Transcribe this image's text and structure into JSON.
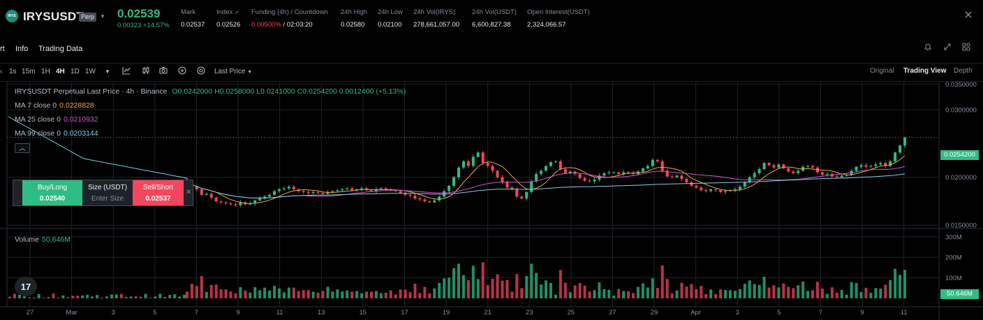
{
  "header": {
    "logo_text": "IRYS",
    "symbol": "IRYSUSDT",
    "badge": "Perp",
    "last_price": "0.02539",
    "change": "0.00323 +14.57%",
    "stats": [
      {
        "label": "Mark",
        "value": "0.02537"
      },
      {
        "label": "Index",
        "value": "0.02526"
      },
      {
        "label": "Funding (4h) / Countdown",
        "value_red": "0.00500%",
        "value": " / 02:03:20"
      },
      {
        "label": "24h High",
        "value": "0.02580"
      },
      {
        "label": "24h Low",
        "value": "0.02100"
      },
      {
        "label": "24h Vol(IRYS)",
        "value": "278,661,057.00"
      },
      {
        "label": "24h Vol(USDT)",
        "value": "6,600,827.38"
      },
      {
        "label": "Open Interest(USDT)",
        "value": "2,324,066.57"
      }
    ],
    "colors": {
      "up": "#2ebd85",
      "down": "#f6465d"
    }
  },
  "tabs": [
    "rt",
    "Info",
    "Trading Data"
  ],
  "toolbar": {
    "timeframes": [
      "1s",
      "15m",
      "1H",
      "4H",
      "1D",
      "1W"
    ],
    "active_timeframe": "4H",
    "price_type": "Last Price",
    "views": [
      "Original",
      "Trading View",
      "Depth"
    ],
    "active_view": "Trading View"
  },
  "legend": {
    "title": "IRYSUSDT Perpetual Last Price · 4h · Binance",
    "ohlc": "O0.0242000  H0.0258000  L0.0241000  C0.0254200  0.0012400 (+5.13%)",
    "ma7_label": "MA 7 close 0",
    "ma7_value": "0.0228828",
    "ma25_label": "MA 25 close 0",
    "ma25_value": "0.0210932",
    "ma99_label": "MA 99 close 0",
    "ma99_value": "0.0203144",
    "volume_label": "Volume",
    "volume_value": "50.646M"
  },
  "trade_panel": {
    "buy_label": "Buy/Long",
    "buy_price": "0.02540",
    "size_label": "Size (USDT)",
    "size_placeholder": "Enter Size",
    "sell_label": "Sell/Short",
    "sell_price": "0.02537"
  },
  "current_price_tag": "0.0254200",
  "volume_tag": "50.646M",
  "tv_logo": "17",
  "chart_data": {
    "type": "candlestick",
    "price_axis": {
      "ticks": [
        0.035,
        0.03,
        0.02,
        0.015
      ],
      "tick_labels": [
        "0.0350000",
        "0.0300000",
        "0.0200000",
        "0.0150000"
      ],
      "ylim": [
        0.0147,
        0.0355
      ],
      "scale": "log"
    },
    "volume_axis": {
      "ticks": [
        300,
        200,
        100
      ],
      "tick_labels": [
        "300M",
        "200M",
        "100M"
      ],
      "ylim": [
        0,
        330
      ]
    },
    "x_tick_labels": [
      "27",
      "Mar",
      "3",
      "5",
      "7",
      "9",
      "11",
      "13",
      "15",
      "17",
      "19",
      "21",
      "23",
      "25",
      "27",
      "29",
      "Apr",
      "3",
      "5",
      "7",
      "9",
      "11"
    ],
    "candles_4h_close": [
      0.0193,
      0.0189,
      0.0186,
      0.018,
      0.0181,
      0.0177,
      0.0173,
      0.0172,
      0.0171,
      0.017,
      0.0169,
      0.0172,
      0.017,
      0.0171,
      0.0174,
      0.0176,
      0.0178,
      0.018,
      0.0184,
      0.0186,
      0.0187,
      0.0189,
      0.0186,
      0.0184,
      0.0183,
      0.0182,
      0.0183,
      0.0182,
      0.0181,
      0.0183,
      0.0184,
      0.0185,
      0.0186,
      0.0187,
      0.0185,
      0.0186,
      0.0187,
      0.0185,
      0.0184,
      0.0186,
      0.0187,
      0.0186,
      0.0185,
      0.0184,
      0.0182,
      0.018,
      0.0179,
      0.0176,
      0.0175,
      0.0173,
      0.0172,
      0.0174,
      0.0178,
      0.0184,
      0.019,
      0.02,
      0.0212,
      0.022,
      0.0214,
      0.0226,
      0.0232,
      0.0218,
      0.0214,
      0.0208,
      0.02,
      0.0194,
      0.0188,
      0.0186,
      0.0178,
      0.0176,
      0.0183,
      0.0195,
      0.0204,
      0.0208,
      0.0214,
      0.0219,
      0.022,
      0.021,
      0.0205,
      0.0207,
      0.0204,
      0.0199,
      0.0196,
      0.0195,
      0.0197,
      0.0202,
      0.0205,
      0.0206,
      0.0206,
      0.0204,
      0.0206,
      0.0205,
      0.0204,
      0.0207,
      0.0211,
      0.0214,
      0.0222,
      0.022,
      0.0208,
      0.0201,
      0.02,
      0.0202,
      0.0198,
      0.0194,
      0.019,
      0.0188,
      0.0185,
      0.0184,
      0.0186,
      0.0185,
      0.0183,
      0.0184,
      0.0185,
      0.0186,
      0.0189,
      0.0194,
      0.02,
      0.0205,
      0.021,
      0.0218,
      0.0215,
      0.0212,
      0.0216,
      0.0211,
      0.0207,
      0.0205,
      0.0208,
      0.0213,
      0.0214,
      0.0212,
      0.0206,
      0.0203,
      0.0204,
      0.0201,
      0.02,
      0.0202,
      0.0203,
      0.0208,
      0.0213,
      0.0215,
      0.0213,
      0.0214,
      0.0216,
      0.0218,
      0.0214,
      0.022,
      0.0232,
      0.0242,
      0.0254
    ]
  }
}
